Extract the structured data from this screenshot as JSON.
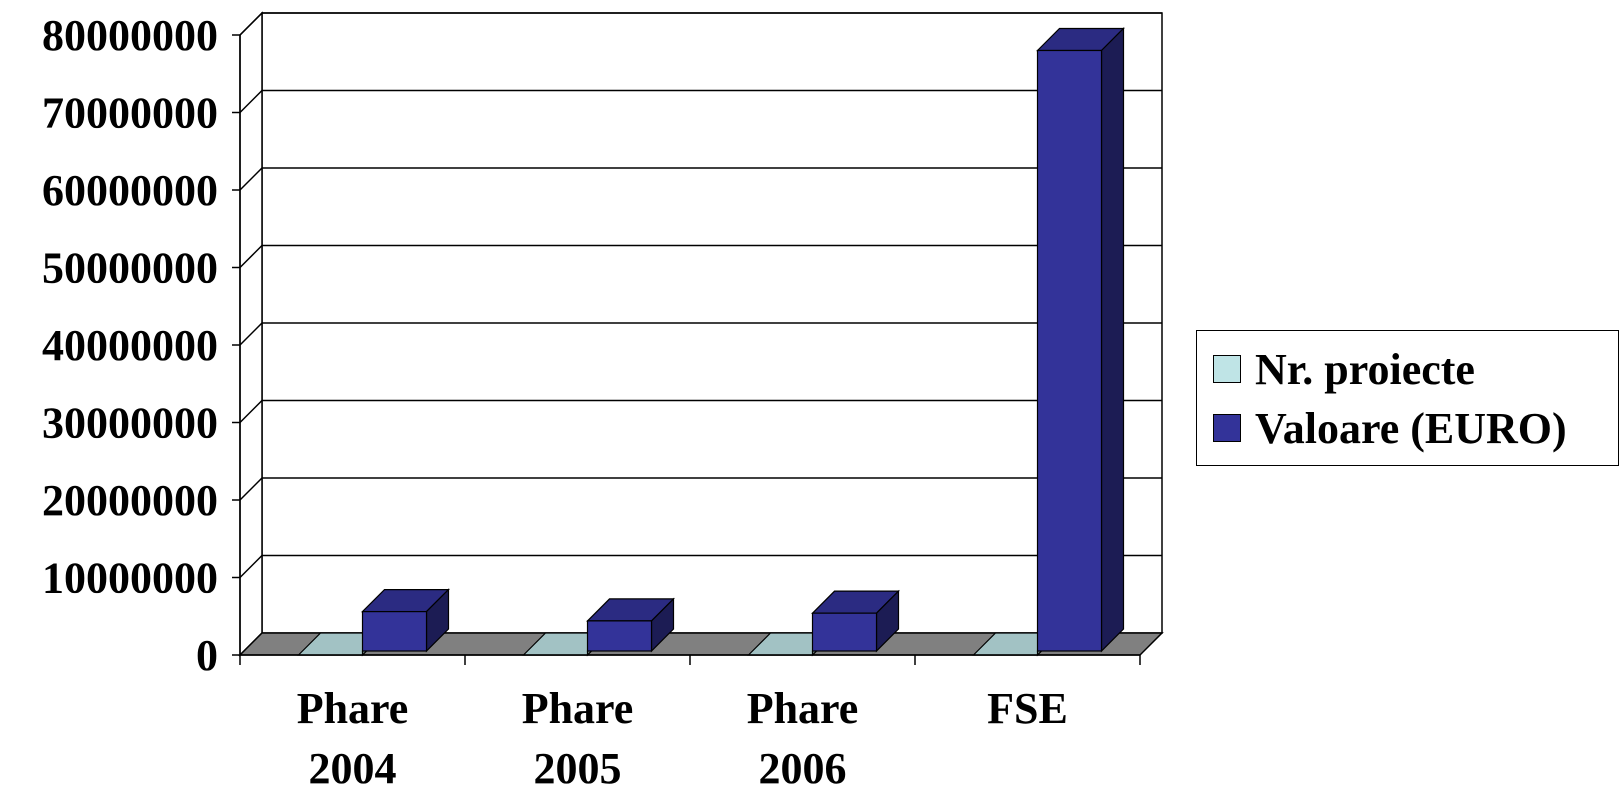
{
  "chart_data": {
    "type": "bar",
    "title": "",
    "xlabel": "",
    "ylabel": "",
    "categories": [
      [
        "Phare",
        "2004"
      ],
      [
        "Phare",
        "2005"
      ],
      [
        "Phare",
        "2006"
      ],
      [
        "FSE"
      ]
    ],
    "series": [
      {
        "name": "Nr. proiecte",
        "values": [
          150,
          120,
          90,
          1300
        ],
        "color": "#bfe4e6"
      },
      {
        "name": "Valoare (EURO)",
        "values": [
          5600000,
          4400000,
          5400000,
          78000000
        ],
        "color": "#333399"
      }
    ],
    "ylim": [
      0,
      80000000
    ],
    "yticks": [
      0,
      10000000,
      20000000,
      30000000,
      40000000,
      50000000,
      60000000,
      70000000,
      80000000
    ],
    "grid": true,
    "three_d": true,
    "legend_position": "right"
  }
}
